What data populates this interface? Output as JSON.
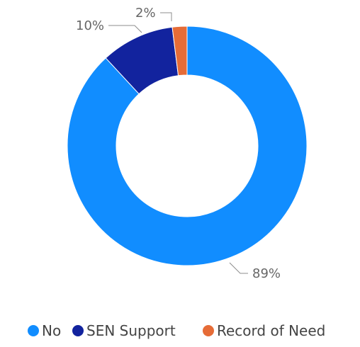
{
  "chart_data": {
    "type": "pie",
    "variant": "donut",
    "title": "",
    "categories": [
      "No",
      "SEN Support",
      "Record of Need"
    ],
    "values": [
      89,
      10,
      2
    ],
    "value_unit": "%",
    "data_labels": [
      "89%",
      "10%",
      "2%"
    ],
    "colors": [
      "#118DFF",
      "#12239E",
      "#E66C37"
    ],
    "legend": {
      "position": "bottom",
      "entries": [
        "No",
        "SEN Support",
        "Record of Need"
      ]
    }
  }
}
